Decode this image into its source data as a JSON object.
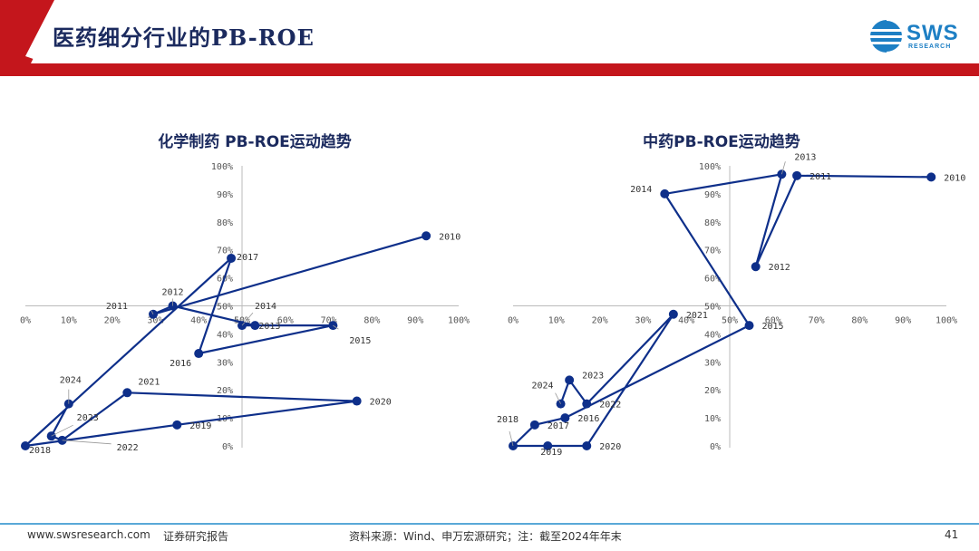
{
  "header": {
    "title": "医药细分行业的PB-ROE"
  },
  "logo": {
    "text": "SWS",
    "subtext": "RESEARCH"
  },
  "colors": {
    "series": "#0e2f8a",
    "accent_red": "#c4161c",
    "axis": "#bbbbbb",
    "footer_line": "#5aa9d8"
  },
  "chart_data": [
    {
      "type": "scatter",
      "title": "化学制药 PB-ROE运动趋势",
      "xlim": [
        0,
        100
      ],
      "ylim": [
        0,
        100
      ],
      "xticks": [
        "0%",
        "10%",
        "20%",
        "30%",
        "40%",
        "50%",
        "60%",
        "70%",
        "80%",
        "90%",
        "100%"
      ],
      "yticks": [
        "0%",
        "10%",
        "20%",
        "30%",
        "40%",
        "50%",
        "60%",
        "70%",
        "80%",
        "90%",
        "100%"
      ],
      "axis_cross": {
        "x": 50,
        "y": 50
      },
      "points": [
        {
          "label": "2010",
          "x": 92.5,
          "y": 75
        },
        {
          "label": "2011",
          "x": 29.5,
          "y": 47
        },
        {
          "label": "2012",
          "x": 34,
          "y": 50
        },
        {
          "label": "2013",
          "x": 53,
          "y": 43
        },
        {
          "label": "2014",
          "x": 50,
          "y": 43
        },
        {
          "label": "2015",
          "x": 71,
          "y": 43
        },
        {
          "label": "2016",
          "x": 40,
          "y": 33
        },
        {
          "label": "2017",
          "x": 47.5,
          "y": 67
        },
        {
          "label": "2018",
          "x": 0,
          "y": 0
        },
        {
          "label": "2019",
          "x": 35,
          "y": 7.5
        },
        {
          "label": "2020",
          "x": 76.5,
          "y": 16
        },
        {
          "label": "2021",
          "x": 23.5,
          "y": 19
        },
        {
          "label": "2022",
          "x": 8.5,
          "y": 2
        },
        {
          "label": "2023",
          "x": 6,
          "y": 3.5
        },
        {
          "label": "2024",
          "x": 10,
          "y": 15
        }
      ]
    },
    {
      "type": "scatter",
      "title": "中药PB-ROE运动趋势",
      "xlim": [
        0,
        100
      ],
      "ylim": [
        0,
        100
      ],
      "xticks": [
        "0%",
        "10%",
        "20%",
        "30%",
        "40%",
        "50%",
        "60%",
        "70%",
        "80%",
        "90%",
        "100%"
      ],
      "yticks": [
        "0%",
        "10%",
        "20%",
        "30%",
        "40%",
        "50%",
        "60%",
        "70%",
        "80%",
        "90%",
        "100%"
      ],
      "axis_cross": {
        "x": 50,
        "y": 50
      },
      "points": [
        {
          "label": "2010",
          "x": 96.5,
          "y": 96
        },
        {
          "label": "2011",
          "x": 65.5,
          "y": 96.5
        },
        {
          "label": "2012",
          "x": 56,
          "y": 64
        },
        {
          "label": "2013",
          "x": 62,
          "y": 97
        },
        {
          "label": "2014",
          "x": 35,
          "y": 90
        },
        {
          "label": "2015",
          "x": 54.5,
          "y": 43
        },
        {
          "label": "2016",
          "x": 12,
          "y": 10
        },
        {
          "label": "2017",
          "x": 5,
          "y": 7.5
        },
        {
          "label": "2018",
          "x": 0,
          "y": 0
        },
        {
          "label": "2019",
          "x": 8,
          "y": 0
        },
        {
          "label": "2020",
          "x": 17,
          "y": 0
        },
        {
          "label": "2021",
          "x": 37,
          "y": 47
        },
        {
          "label": "2022",
          "x": 17,
          "y": 15
        },
        {
          "label": "2023",
          "x": 13,
          "y": 23.5
        },
        {
          "label": "2024",
          "x": 11,
          "y": 15
        }
      ]
    }
  ],
  "footer": {
    "website": "www.swsresearch.com",
    "report_type": "证券研究报告",
    "source": "资料来源：Wind、申万宏源研究；注：截至2024年年末",
    "page": "41"
  }
}
